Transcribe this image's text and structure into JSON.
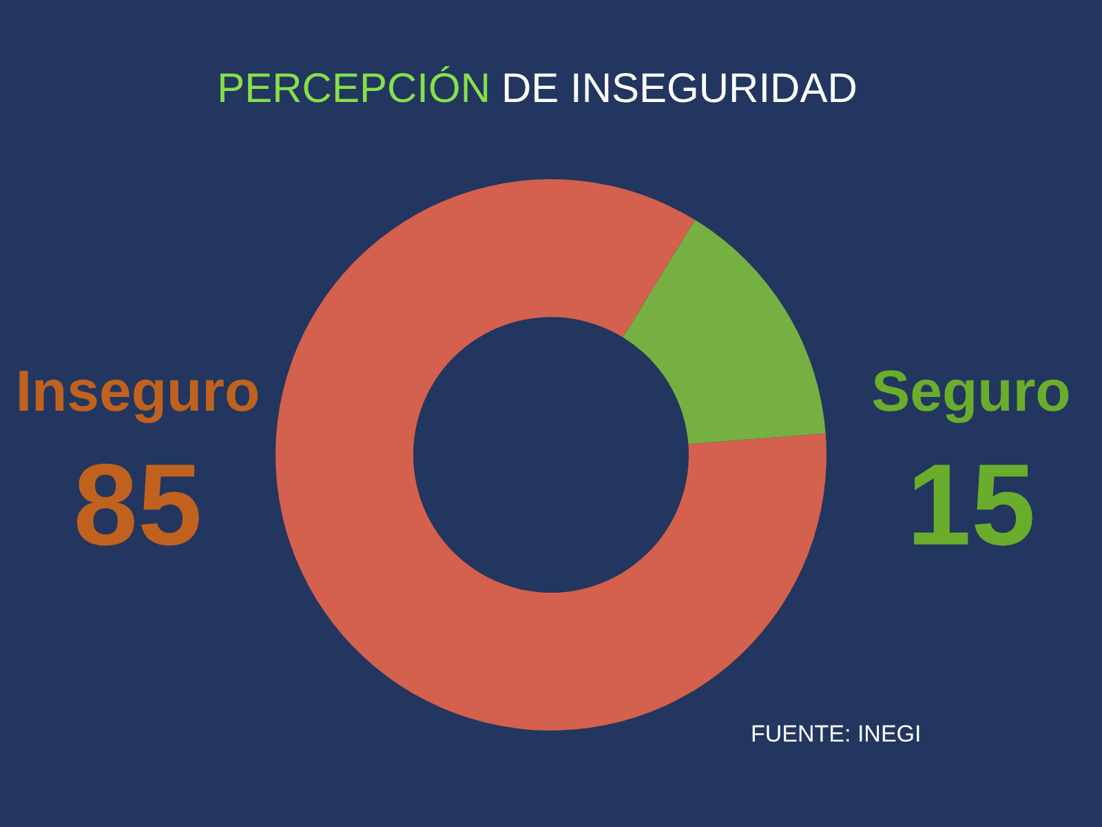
{
  "chart_data": {
    "type": "donut",
    "title": "PERCEPCIÓN DE INSEGURIDAD",
    "categories": [
      "Inseguro",
      "Seguro"
    ],
    "values": [
      85,
      15
    ],
    "colors": [
      "#d4604e",
      "#76b043"
    ],
    "data_labels": true,
    "annotations": [
      "FUENTE: INEGI"
    ]
  }
}
